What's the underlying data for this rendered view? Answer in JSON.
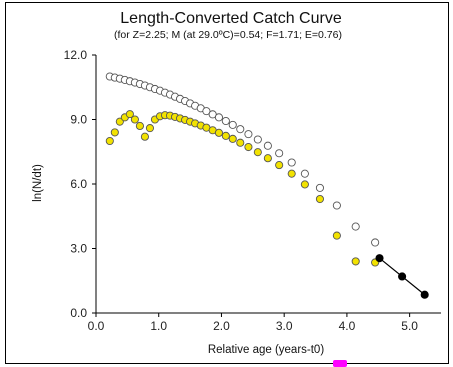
{
  "chart_data": {
    "type": "scatter",
    "title": "Length-Converted Catch Curve",
    "subtitle": "(for Z=2.25; M (at 29.0ºC)=0.54; F=1.71; E=0.76)",
    "xlabel": "Relative age (years-t0)",
    "ylabel": "ln(N/dt)",
    "xlim": [
      0,
      5.5
    ],
    "ylim": [
      0,
      12
    ],
    "x_ticks": [
      "0.0",
      "1.0",
      "2.0",
      "3.0",
      "4.0",
      "5.0"
    ],
    "y_ticks": [
      "0.0",
      "3.0",
      "6.0",
      "9.0",
      "12.0"
    ],
    "grid": false,
    "series": [
      {
        "role": "open",
        "color": "#ffffff",
        "points": [
          [
            0.22,
            11.0
          ],
          [
            0.3,
            10.95
          ],
          [
            0.38,
            10.9
          ],
          [
            0.46,
            10.84
          ],
          [
            0.54,
            10.78
          ],
          [
            0.62,
            10.72
          ],
          [
            0.7,
            10.65
          ],
          [
            0.78,
            10.58
          ],
          [
            0.86,
            10.5
          ],
          [
            0.94,
            10.42
          ],
          [
            1.02,
            10.34
          ],
          [
            1.1,
            10.25
          ],
          [
            1.18,
            10.16
          ],
          [
            1.26,
            10.06
          ],
          [
            1.34,
            9.96
          ],
          [
            1.42,
            9.86
          ],
          [
            1.5,
            9.75
          ],
          [
            1.58,
            9.64
          ],
          [
            1.67,
            9.52
          ],
          [
            1.76,
            9.39
          ],
          [
            1.86,
            9.24
          ],
          [
            1.96,
            9.1
          ],
          [
            2.07,
            8.93
          ],
          [
            2.18,
            8.75
          ],
          [
            2.3,
            8.55
          ],
          [
            2.43,
            8.32
          ],
          [
            2.58,
            8.07
          ],
          [
            2.74,
            7.78
          ],
          [
            2.92,
            7.43
          ],
          [
            3.12,
            7.0
          ],
          [
            3.33,
            6.48
          ],
          [
            3.57,
            5.82
          ],
          [
            3.84,
            5.0
          ],
          [
            4.14,
            4.02
          ],
          [
            4.45,
            3.28
          ]
        ]
      },
      {
        "role": "yellow",
        "color": "#f2e200",
        "points": [
          [
            0.22,
            8.0
          ],
          [
            0.3,
            8.4
          ],
          [
            0.38,
            8.9
          ],
          [
            0.46,
            9.1
          ],
          [
            0.54,
            9.25
          ],
          [
            0.62,
            9.0
          ],
          [
            0.7,
            8.7
          ],
          [
            0.78,
            8.2
          ],
          [
            0.86,
            8.6
          ],
          [
            0.94,
            9.0
          ],
          [
            1.02,
            9.15
          ],
          [
            1.1,
            9.2
          ],
          [
            1.18,
            9.18
          ],
          [
            1.26,
            9.12
          ],
          [
            1.34,
            9.05
          ],
          [
            1.42,
            8.98
          ],
          [
            1.5,
            8.9
          ],
          [
            1.58,
            8.82
          ],
          [
            1.67,
            8.72
          ],
          [
            1.76,
            8.62
          ],
          [
            1.86,
            8.5
          ],
          [
            1.96,
            8.38
          ],
          [
            2.07,
            8.24
          ],
          [
            2.18,
            8.1
          ],
          [
            2.3,
            7.92
          ],
          [
            2.43,
            7.72
          ],
          [
            2.58,
            7.48
          ],
          [
            2.74,
            7.2
          ],
          [
            2.92,
            6.88
          ],
          [
            3.12,
            6.48
          ],
          [
            3.33,
            5.98
          ],
          [
            3.57,
            5.3
          ],
          [
            3.84,
            3.6
          ],
          [
            4.14,
            2.4
          ],
          [
            4.45,
            2.35
          ]
        ]
      },
      {
        "role": "filled",
        "color": "#000000",
        "points": [
          [
            4.52,
            2.55
          ],
          [
            4.88,
            1.7
          ],
          [
            5.24,
            0.85
          ]
        ]
      }
    ],
    "regression_line": [
      [
        4.52,
        2.55
      ],
      [
        5.24,
        0.85
      ]
    ]
  }
}
